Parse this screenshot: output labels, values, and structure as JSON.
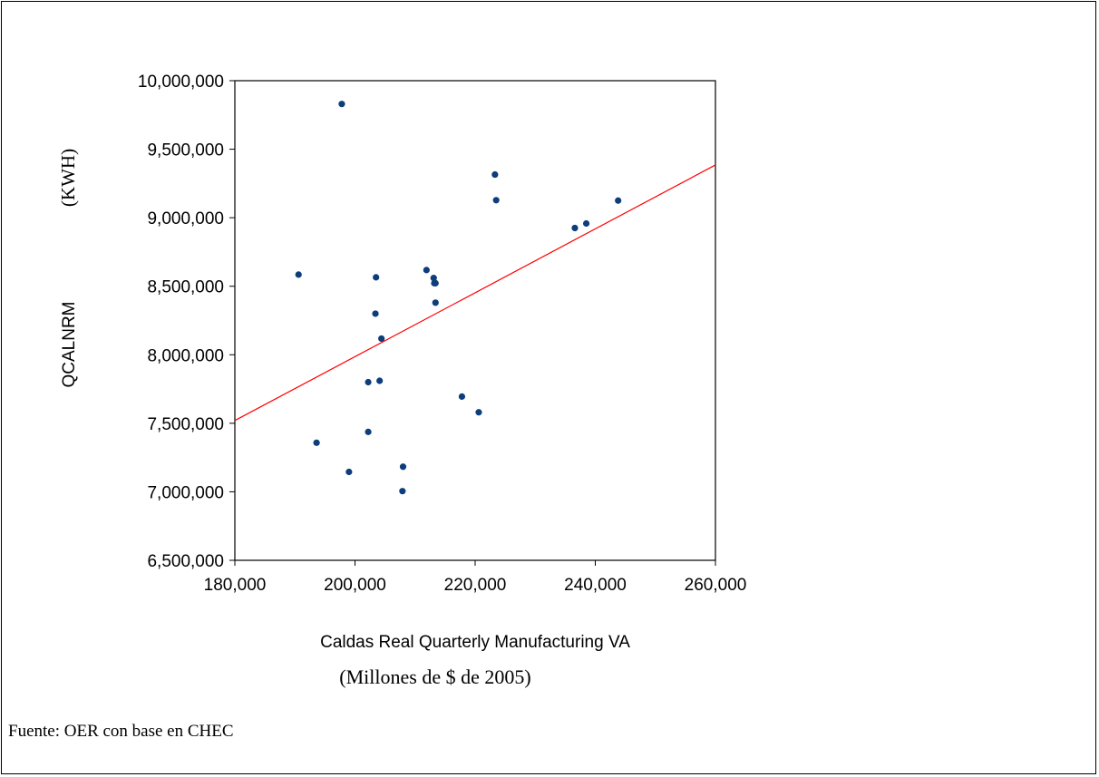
{
  "chart_data": {
    "type": "scatter",
    "title": "",
    "xlabel": "Caldas Real Quarterly Manufacturing VA",
    "x_unit_note": "(Millones de  $ de 2005)",
    "ylabel": "QCALNRM",
    "y_unit_note": "(KWH)",
    "xlim": [
      180000,
      260000
    ],
    "ylim": [
      6500000,
      10000000
    ],
    "x_ticks": [
      180000,
      200000,
      220000,
      240000,
      260000
    ],
    "y_ticks": [
      6500000,
      7000000,
      7500000,
      8000000,
      8500000,
      9000000,
      9500000,
      10000000
    ],
    "x_tick_labels": [
      "180,000",
      "200,000",
      "220,000",
      "240,000",
      "260,000"
    ],
    "y_tick_labels": [
      "6,500,000",
      "7,000,000",
      "7,500,000",
      "8,000,000",
      "8,500,000",
      "9,000,000",
      "9,500,000",
      "10,000,000"
    ],
    "grid": false,
    "point_color": "#0d3d7a",
    "line_color": "#ff0000",
    "points": [
      {
        "x": 197800,
        "y": 9830000
      },
      {
        "x": 223300,
        "y": 9315000
      },
      {
        "x": 223500,
        "y": 9128000
      },
      {
        "x": 243800,
        "y": 9125000
      },
      {
        "x": 238500,
        "y": 8958000
      },
      {
        "x": 236600,
        "y": 8925000
      },
      {
        "x": 190600,
        "y": 8585000
      },
      {
        "x": 203500,
        "y": 8565000
      },
      {
        "x": 211900,
        "y": 8618000
      },
      {
        "x": 213100,
        "y": 8560000
      },
      {
        "x": 213200,
        "y": 8522000
      },
      {
        "x": 213400,
        "y": 8522000
      },
      {
        "x": 213400,
        "y": 8380000
      },
      {
        "x": 203400,
        "y": 8300000
      },
      {
        "x": 204400,
        "y": 8118000
      },
      {
        "x": 202200,
        "y": 7800000
      },
      {
        "x": 204100,
        "y": 7810000
      },
      {
        "x": 217800,
        "y": 7695000
      },
      {
        "x": 220600,
        "y": 7580000
      },
      {
        "x": 193600,
        "y": 7358000
      },
      {
        "x": 202200,
        "y": 7437000
      },
      {
        "x": 199000,
        "y": 7145000
      },
      {
        "x": 208000,
        "y": 7183000
      },
      {
        "x": 207900,
        "y": 7005000
      }
    ],
    "fit_line": {
      "x": [
        180000,
        260000
      ],
      "y": [
        7520000,
        9385000
      ]
    }
  },
  "source": "Fuente: OER con base en CHEC"
}
